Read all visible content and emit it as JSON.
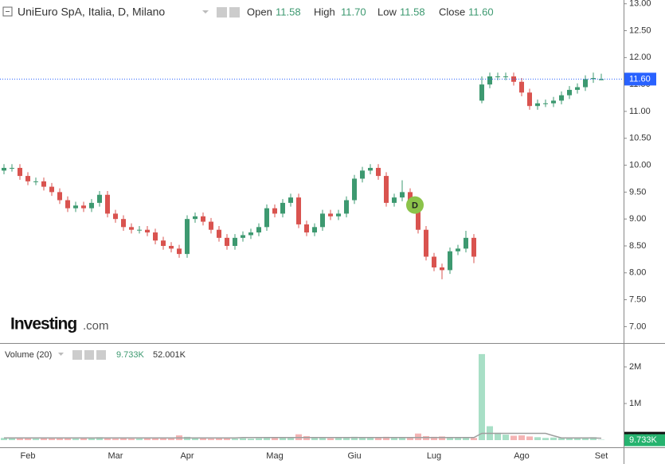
{
  "chart_data": {
    "type": "candlestick",
    "title": "UniEuro SpA, Italia, D, Milano",
    "header": {
      "open_label": "Open",
      "open": "11.58",
      "high_label": "High",
      "high": "11.70",
      "low_label": "Low",
      "low": "11.58",
      "close_label": "Close",
      "close": "11.60"
    },
    "watermark": {
      "brand": "Investing",
      "suffix": ".com"
    },
    "categories": [
      null,
      null,
      null,
      "Feb",
      null,
      null,
      null,
      null,
      null,
      null,
      null,
      null,
      null,
      null,
      "Mar",
      null,
      null,
      null,
      null,
      null,
      null,
      null,
      null,
      "Apr",
      null,
      null,
      null,
      null,
      null,
      null,
      null,
      null,
      null,
      null,
      "Mag",
      null,
      null,
      null,
      null,
      null,
      null,
      null,
      null,
      null,
      "Giu",
      null,
      null,
      null,
      null,
      null,
      null,
      null,
      null,
      null,
      "Lug",
      null,
      null,
      null,
      null,
      null,
      null,
      null,
      null,
      null,
      null,
      "Ago",
      null,
      null,
      null,
      null,
      null,
      null,
      null,
      null,
      null,
      "Set"
    ],
    "open": [
      9.9,
      9.95,
      9.95,
      9.8,
      9.7,
      9.7,
      9.6,
      9.5,
      9.35,
      9.2,
      9.25,
      9.2,
      9.3,
      9.45,
      9.1,
      9.0,
      8.85,
      8.8,
      8.8,
      8.75,
      8.6,
      8.5,
      8.45,
      8.35,
      9.0,
      9.05,
      8.95,
      8.8,
      8.65,
      8.5,
      8.65,
      8.7,
      8.75,
      8.85,
      9.2,
      9.1,
      9.3,
      9.4,
      8.9,
      8.75,
      8.85,
      9.1,
      9.05,
      9.1,
      9.35,
      9.75,
      9.9,
      9.95,
      9.8,
      9.3,
      9.4,
      9.5,
      9.3,
      8.8,
      8.3,
      8.1,
      8.05,
      8.4,
      8.45,
      8.65,
      11.2,
      11.5,
      11.65,
      11.65,
      11.65,
      11.55,
      11.35,
      11.1,
      11.15,
      11.15,
      11.2,
      11.3,
      11.4,
      11.45,
      11.6,
      11.58
    ],
    "high": [
      10.02,
      10.02,
      10.02,
      9.87,
      9.77,
      9.77,
      9.67,
      9.57,
      9.42,
      9.32,
      9.32,
      9.37,
      9.52,
      9.52,
      9.17,
      9.07,
      8.92,
      8.87,
      8.87,
      8.82,
      8.67,
      8.57,
      8.52,
      9.07,
      9.12,
      9.12,
      9.02,
      8.87,
      8.72,
      8.72,
      8.77,
      8.82,
      8.92,
      9.27,
      9.27,
      9.37,
      9.47,
      9.47,
      8.97,
      8.92,
      9.17,
      9.17,
      9.17,
      9.42,
      9.82,
      9.97,
      10.02,
      10.02,
      9.87,
      9.47,
      9.72,
      9.57,
      9.37,
      8.87,
      8.37,
      8.17,
      8.47,
      8.52,
      8.78,
      8.72,
      11.65,
      11.72,
      11.72,
      11.72,
      11.72,
      11.62,
      11.42,
      11.22,
      11.22,
      11.27,
      11.37,
      11.47,
      11.52,
      11.67,
      11.72,
      11.7
    ],
    "low": [
      9.83,
      9.88,
      9.73,
      9.63,
      9.63,
      9.53,
      9.43,
      9.28,
      9.13,
      9.13,
      9.13,
      9.13,
      9.23,
      9.03,
      8.93,
      8.78,
      8.73,
      8.73,
      8.68,
      8.53,
      8.43,
      8.38,
      8.28,
      8.28,
      8.93,
      8.88,
      8.73,
      8.58,
      8.43,
      8.43,
      8.58,
      8.63,
      8.68,
      8.78,
      9.03,
      9.03,
      9.23,
      8.83,
      8.68,
      8.68,
      8.78,
      8.98,
      8.98,
      9.03,
      9.28,
      9.68,
      9.83,
      9.73,
      9.23,
      9.23,
      9.33,
      9.23,
      8.73,
      8.23,
      8.03,
      7.88,
      7.98,
      8.33,
      8.38,
      8.18,
      11.15,
      11.43,
      11.58,
      11.58,
      11.48,
      11.28,
      11.03,
      11.03,
      11.08,
      11.08,
      11.13,
      11.23,
      11.33,
      11.38,
      11.53,
      11.58
    ],
    "close": [
      9.95,
      9.95,
      9.8,
      9.7,
      9.7,
      9.6,
      9.5,
      9.35,
      9.2,
      9.25,
      9.2,
      9.3,
      9.45,
      9.1,
      9.0,
      8.85,
      8.8,
      8.8,
      8.75,
      8.6,
      8.5,
      8.45,
      8.35,
      9.0,
      9.05,
      8.95,
      8.8,
      8.65,
      8.5,
      8.65,
      8.7,
      8.75,
      8.85,
      9.2,
      9.1,
      9.3,
      9.4,
      8.9,
      8.75,
      8.85,
      9.1,
      9.05,
      9.1,
      9.35,
      9.75,
      9.9,
      9.95,
      9.8,
      9.3,
      9.4,
      9.5,
      9.3,
      8.8,
      8.3,
      8.1,
      8.05,
      8.4,
      8.45,
      8.65,
      8.3,
      11.5,
      11.65,
      11.65,
      11.65,
      11.55,
      11.35,
      11.1,
      11.15,
      11.15,
      11.2,
      11.3,
      11.4,
      11.45,
      11.6,
      11.62,
      11.6
    ],
    "up_color": "#3d9970",
    "down_color": "#d9534f",
    "ylim": [
      6.71,
      13.07
    ],
    "yticks": [
      {
        "value": 7,
        "label": "7.00"
      },
      {
        "value": 7.5,
        "label": "7.50"
      },
      {
        "value": 8,
        "label": "8.00"
      },
      {
        "value": 8.5,
        "label": "8.50"
      },
      {
        "value": 9,
        "label": "9.00"
      },
      {
        "value": 9.5,
        "label": "9.50"
      },
      {
        "value": 10,
        "label": "10.00"
      },
      {
        "value": 10.5,
        "label": "10.50"
      },
      {
        "value": 11,
        "label": "11.00"
      },
      {
        "value": 11.5,
        "label": "11.50"
      },
      {
        "value": 12,
        "label": "12.00"
      },
      {
        "value": 12.5,
        "label": "12.50"
      },
      {
        "value": 13,
        "label": "13.00"
      }
    ],
    "last_price": {
      "value": 11.6,
      "label": "11.60",
      "color": "#2962ff"
    },
    "event_marker": {
      "label": "D",
      "candle": 51,
      "color": "#8bc34a"
    },
    "volume": {
      "title": "Volume (20)",
      "last_volume": "9.733K",
      "last_ma": "52.001K",
      "values": [
        60000,
        50000,
        70000,
        50000,
        40000,
        60000,
        50000,
        70000,
        60000,
        40000,
        50000,
        60000,
        80000,
        50000,
        40000,
        50000,
        40000,
        40000,
        50000,
        60000,
        50000,
        60000,
        130000,
        90000,
        50000,
        60000,
        40000,
        50000,
        60000,
        40000,
        50000,
        40000,
        50000,
        70000,
        60000,
        80000,
        60000,
        160000,
        110000,
        60000,
        70000,
        50000,
        60000,
        80000,
        90000,
        70000,
        60000,
        70000,
        90000,
        60000,
        70000,
        60000,
        180000,
        110000,
        90000,
        100000,
        80000,
        60000,
        70000,
        60000,
        2350000,
        380000,
        200000,
        150000,
        120000,
        130000,
        100000,
        80000,
        60000,
        70000,
        60000,
        50000,
        70000,
        60000,
        80000,
        9733
      ],
      "ma": [
        60000,
        60000,
        60000,
        60000,
        60000,
        60000,
        60000,
        60000,
        60000,
        60000,
        60000,
        60000,
        60000,
        60000,
        60000,
        60000,
        60000,
        60000,
        60000,
        60000,
        60000,
        60000,
        60000,
        60000,
        60000,
        60000,
        60000,
        60000,
        60000,
        60000,
        70000,
        70000,
        70000,
        70000,
        70000,
        70000,
        70000,
        70000,
        70000,
        70000,
        70000,
        70000,
        70000,
        70000,
        70000,
        70000,
        70000,
        70000,
        70000,
        70000,
        70000,
        70000,
        70000,
        70000,
        70000,
        70000,
        70000,
        70000,
        70000,
        70000,
        185000,
        185000,
        185000,
        185000,
        185000,
        185000,
        185000,
        185000,
        185000,
        120000,
        60000,
        60000,
        60000,
        60000,
        60000,
        52001
      ],
      "up_color": "#a8dfc6",
      "down_color": "#f4b4b4",
      "ma_color": "#9e9e9e",
      "ylim": [
        0,
        2630000
      ],
      "yticks": [
        {
          "value": 1000000,
          "label": "1M"
        },
        {
          "value": 2000000,
          "label": "2M"
        }
      ]
    }
  }
}
